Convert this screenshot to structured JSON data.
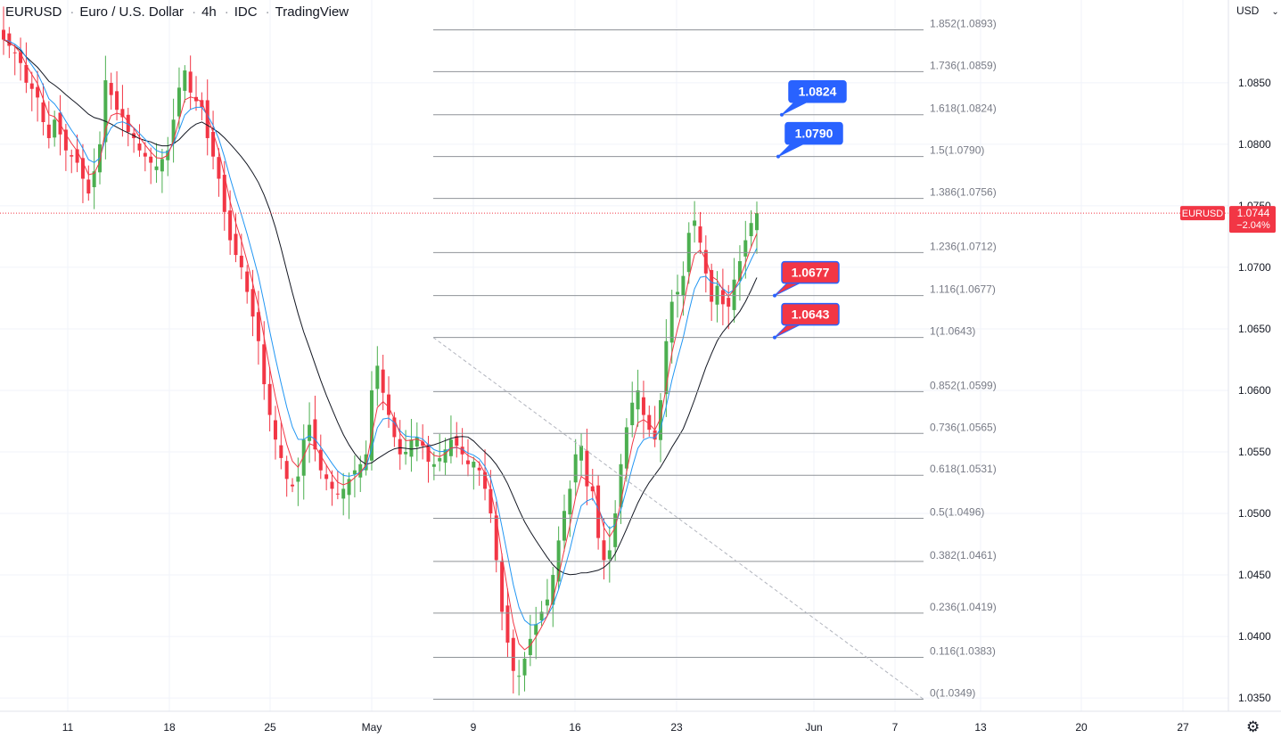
{
  "header": {
    "symbol": "EURUSD",
    "name": "Euro / U.S. Dollar",
    "interval": "4h",
    "source": "IDC",
    "platform": "TradingView"
  },
  "scale": {
    "currency": "USD"
  },
  "icons": {
    "currency_menu": "chevron-down-icon",
    "settings": "gear-icon"
  },
  "colors": {
    "up": "#26a69a",
    "down": "#ef5350",
    "candle_up": "#4caf50",
    "candle_down": "#f23645",
    "ema_fast": "#f23645",
    "ema_mid": "#2196f3",
    "ma_slow": "#131722",
    "fib": "#8f9398",
    "callout_blue": "#2962ff",
    "callout_red": "#f23645"
  },
  "chart_data": {
    "type": "candlestick",
    "symbol": "EURUSD",
    "ylim": [
      1.0345,
      1.091
    ],
    "y_ticks": [
      1.085,
      1.08,
      1.075,
      1.07,
      1.065,
      1.06,
      1.055,
      1.05,
      1.045,
      1.04,
      1.035
    ],
    "y_tick_labels": [
      "1.0850",
      "1.0800",
      "1.0750",
      "1.0700",
      "1.0650",
      "1.0600",
      "1.0550",
      "1.0500",
      "1.0450",
      "1.0400",
      "1.0350"
    ],
    "x_ticks": [
      "11",
      "18",
      "25",
      "May",
      "9",
      "16",
      "23",
      "Jun",
      "7",
      "13",
      "20",
      "27"
    ],
    "x_tick_pos": [
      76,
      190,
      303,
      417,
      531,
      645,
      759,
      913,
      1004,
      1100,
      1213,
      1327
    ],
    "last_price": {
      "label": "EURUSD",
      "value": "1.0744",
      "change": "−2.04%",
      "price": 1.0744
    },
    "closes": [
      1.0885,
      1.088,
      1.0874,
      1.0866,
      1.085,
      1.0845,
      1.0838,
      1.0818,
      1.0805,
      1.082,
      1.0808,
      1.0795,
      1.079,
      1.0785,
      1.0772,
      1.076,
      1.0778,
      1.08,
      1.0852,
      1.084,
      1.0828,
      1.0822,
      1.081,
      1.0805,
      1.0795,
      1.079,
      1.0785,
      1.0782,
      1.0788,
      1.0795,
      1.082,
      1.0846,
      1.086,
      1.0842,
      1.0835,
      1.083,
      1.0805,
      1.079,
      1.0772,
      1.0745,
      1.0722,
      1.071,
      1.07,
      1.068,
      1.066,
      1.064,
      1.0605,
      1.058,
      1.056,
      1.0545,
      1.0528,
      1.0522,
      1.053,
      1.056,
      1.0572,
      1.0552,
      1.0535,
      1.0528,
      1.052,
      1.0516,
      1.052,
      1.0528,
      1.0535,
      1.054,
      1.0548,
      1.06,
      1.062,
      1.0598,
      1.058,
      1.0562,
      1.0548,
      1.055,
      1.056,
      1.0562,
      1.0555,
      1.0542,
      1.054,
      1.0545,
      1.0552,
      1.056,
      1.0555,
      1.0548,
      1.054,
      1.0542,
      1.0535,
      1.052,
      1.05,
      1.0462,
      1.042,
      1.0395,
      1.0372,
      1.0368,
      1.0382,
      1.0398,
      1.041,
      1.042,
      1.043,
      1.045,
      1.0478,
      1.0502,
      1.052,
      1.0548,
      1.0555,
      1.0522,
      1.0518,
      1.048,
      1.0462,
      1.047,
      1.05,
      1.054,
      1.057,
      1.059,
      1.06,
      1.058,
      1.0568,
      1.056,
      1.0592,
      1.064,
      1.0672,
      1.068,
      1.0693,
      1.0728,
      1.0738,
      1.072,
      1.0695,
      1.0672,
      1.0685,
      1.067,
      1.0668,
      1.069,
      1.0705,
      1.0722,
      1.0736,
      1.0744
    ],
    "fib_levels": [
      {
        "ratio": "1.852",
        "price": 1.0893,
        "label": "1.852(1.0893)"
      },
      {
        "ratio": "1.736",
        "price": 1.0859,
        "label": "1.736(1.0859)"
      },
      {
        "ratio": "1.618",
        "price": 1.0824,
        "label": "1.618(1.0824)"
      },
      {
        "ratio": "1.5",
        "price": 1.079,
        "label": "1.5(1.0790)"
      },
      {
        "ratio": "1.386",
        "price": 1.0756,
        "label": "1.386(1.0756)"
      },
      {
        "ratio": "1.236",
        "price": 1.0712,
        "label": "1.236(1.0712)"
      },
      {
        "ratio": "1.116",
        "price": 1.0677,
        "label": "1.116(1.0677)"
      },
      {
        "ratio": "1",
        "price": 1.0643,
        "label": "1(1.0643)"
      },
      {
        "ratio": "0.852",
        "price": 1.0599,
        "label": "0.852(1.0599)"
      },
      {
        "ratio": "0.736",
        "price": 1.0565,
        "label": "0.736(1.0565)"
      },
      {
        "ratio": "0.618",
        "price": 1.0531,
        "label": "0.618(1.0531)"
      },
      {
        "ratio": "0.5",
        "price": 1.0496,
        "label": "0.5(1.0496)"
      },
      {
        "ratio": "0.382",
        "price": 1.0461,
        "label": "0.382(1.0461)"
      },
      {
        "ratio": "0.236",
        "price": 1.0419,
        "label": "0.236(1.0419)"
      },
      {
        "ratio": "0.116",
        "price": 1.0383,
        "label": "0.116(1.0383)"
      },
      {
        "ratio": "0",
        "price": 1.0349,
        "label": "0(1.0349)"
      }
    ],
    "callouts": [
      {
        "text": "1.0824",
        "price": 1.0824,
        "color": "blue"
      },
      {
        "text": "1.0790",
        "price": 1.079,
        "color": "blue"
      },
      {
        "text": "1.0677",
        "price": 1.0677,
        "color": "red"
      },
      {
        "text": "1.0643",
        "price": 1.0643,
        "color": "red"
      }
    ],
    "trend_line": {
      "from_price": 1.0643,
      "to_price": 1.0349
    }
  }
}
